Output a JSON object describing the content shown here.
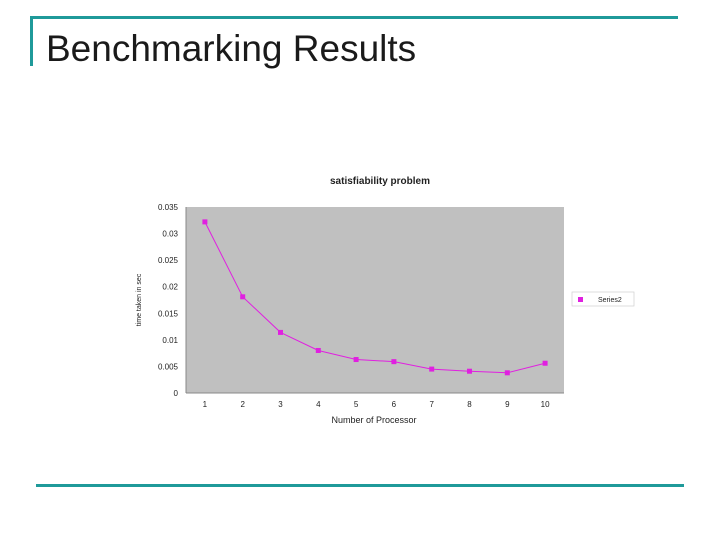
{
  "slide": {
    "title": "Benchmarking Results"
  },
  "colors": {
    "accent": "#1f9a9a",
    "plot_bg": "#c0c0c0",
    "series": "#e020e0"
  },
  "chart_data": {
    "type": "line",
    "title": "satisfiability problem",
    "xlabel": "Number of Processor",
    "ylabel": "time taken in sec",
    "x": [
      1,
      2,
      3,
      4,
      5,
      6,
      7,
      8,
      9,
      10
    ],
    "xticks": [
      "1",
      "2",
      "3",
      "4",
      "5",
      "6",
      "7",
      "8",
      "9",
      "10"
    ],
    "yticks": [
      "0",
      "0.005",
      "0.01",
      "0.015",
      "0.02",
      "0.025",
      "0.03",
      "0.035"
    ],
    "ylim": [
      0,
      0.035
    ],
    "grid": false,
    "legend_position": "right",
    "series": [
      {
        "name": "Series2",
        "values": [
          0.0322,
          0.0181,
          0.0114,
          0.008,
          0.0063,
          0.0059,
          0.0045,
          0.0041,
          0.0038,
          0.0056
        ]
      }
    ]
  }
}
